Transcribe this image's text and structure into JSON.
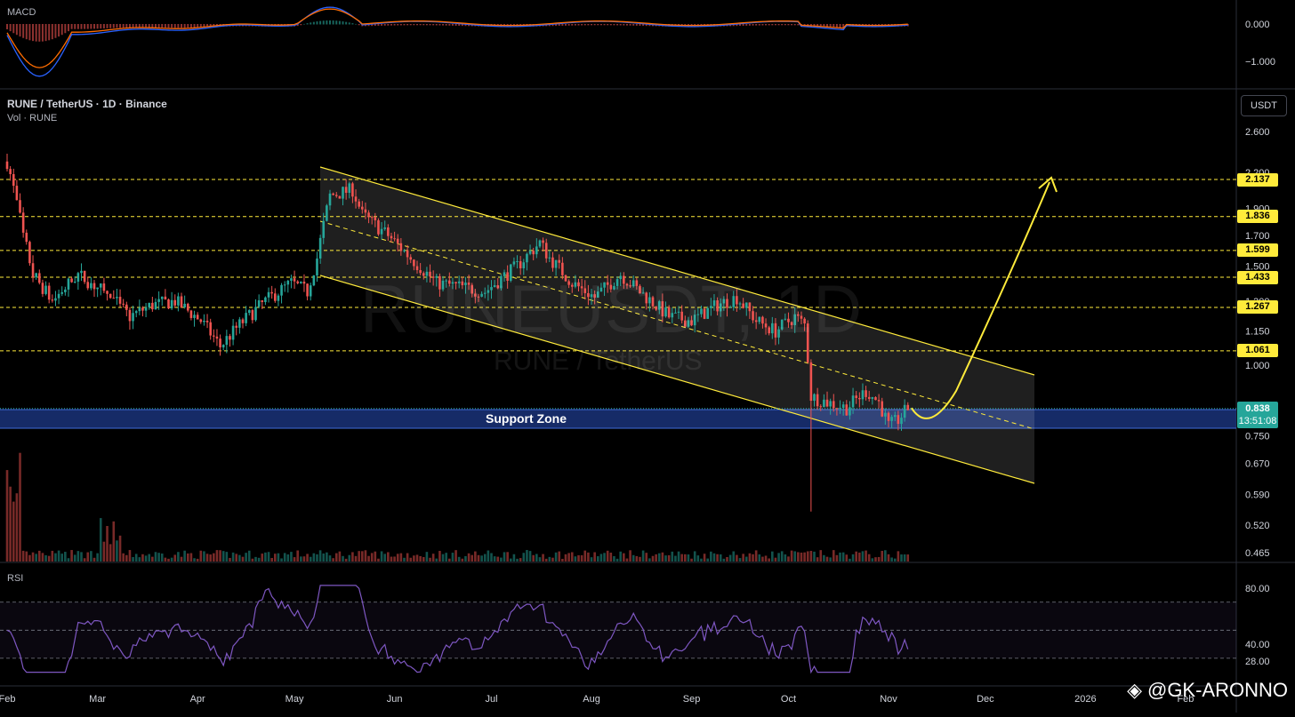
{
  "chart_data": {
    "type": "candlestick",
    "symbol_title": "RUNE / TetherUS · 1D · Binance",
    "volume_label": "Vol · RUNE",
    "watermark_main": "RUNEUSDT, 1D",
    "watermark_sub": "RUNE / TetherUS",
    "currency": "USDT",
    "price_axis_ticks": [
      "2.600",
      "2.200",
      "1.900",
      "1.700",
      "1.500",
      "1.300",
      "1.150",
      "1.000",
      "0.750",
      "0.670",
      "0.590",
      "0.520",
      "0.465"
    ],
    "price_scale": "log",
    "x_axis_ticks": [
      "Feb",
      "Mar",
      "Apr",
      "May",
      "Jun",
      "Jul",
      "Aug",
      "Sep",
      "Oct",
      "Nov",
      "Dec",
      "2026",
      "Feb"
    ],
    "resistance_levels": [
      "2.137",
      "1.836",
      "1.599",
      "1.433",
      "1.267",
      "1.061"
    ],
    "current_price": "0.838",
    "countdown": "13:51:08",
    "support_zone": {
      "label": "Support Zone",
      "low": 0.79,
      "high": 0.85
    },
    "channel": {
      "upper_start": 2.25,
      "upper_end": 0.97,
      "lower_start": 1.46,
      "lower_end": 0.62,
      "start": "May 10",
      "end": "Dec 20"
    },
    "projection_target": "2.137",
    "colors": {
      "up": "#26a69a",
      "down": "#ef5350",
      "levels": "#ffeb3b",
      "zone": "#1e3a8a",
      "rsi": "#7e57c2",
      "macd": "#2962ff",
      "signal": "#ff6d00"
    },
    "macd": {
      "name": "MACD",
      "ticks": [
        "0.000",
        "−1.000"
      ]
    },
    "rsi": {
      "name": "RSI",
      "ticks": [
        "80.00",
        "40.00",
        "28.00"
      ]
    },
    "signature": "@GK-ARONNO"
  }
}
